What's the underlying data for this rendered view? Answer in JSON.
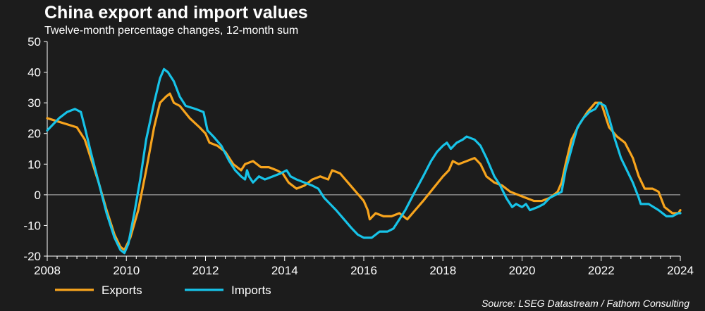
{
  "chart_data": {
    "type": "line",
    "title": "China export and import values",
    "subtitle": "Twelve-month percentage changes, 12-month sum",
    "source": "Source: LSEG Datastream / Fathom Consulting",
    "xlabel": "",
    "ylabel": "",
    "xlim": [
      2008,
      2024
    ],
    "ylim": [
      -20,
      50
    ],
    "x_ticks": [
      2008,
      2010,
      2012,
      2014,
      2016,
      2018,
      2020,
      2022,
      2024
    ],
    "y_ticks": [
      -20,
      -10,
      0,
      10,
      20,
      30,
      40,
      50
    ],
    "legend": "bottom-left",
    "colors": {
      "Exports": "#f7a41d",
      "Imports": "#17c3e8",
      "zero_line": "#bbbbbb",
      "background": "#1c1c1c"
    },
    "series": [
      {
        "name": "Exports",
        "points": [
          [
            2008.0,
            25
          ],
          [
            2008.25,
            24
          ],
          [
            2008.5,
            23
          ],
          [
            2008.75,
            22
          ],
          [
            2008.95,
            18
          ],
          [
            2009.1,
            12
          ],
          [
            2009.3,
            4
          ],
          [
            2009.5,
            -5
          ],
          [
            2009.7,
            -13
          ],
          [
            2009.85,
            -17
          ],
          [
            2009.95,
            -18
          ],
          [
            2010.1,
            -14
          ],
          [
            2010.3,
            -5
          ],
          [
            2010.5,
            8
          ],
          [
            2010.7,
            22
          ],
          [
            2010.85,
            30
          ],
          [
            2011.0,
            32
          ],
          [
            2011.1,
            33
          ],
          [
            2011.2,
            30
          ],
          [
            2011.35,
            29
          ],
          [
            2011.6,
            25
          ],
          [
            2011.85,
            22
          ],
          [
            2012.0,
            20
          ],
          [
            2012.1,
            17
          ],
          [
            2012.3,
            16
          ],
          [
            2012.5,
            14
          ],
          [
            2012.7,
            10
          ],
          [
            2012.9,
            8
          ],
          [
            2013.0,
            10
          ],
          [
            2013.2,
            11
          ],
          [
            2013.4,
            9
          ],
          [
            2013.6,
            9
          ],
          [
            2013.8,
            8
          ],
          [
            2013.95,
            7
          ],
          [
            2014.1,
            4
          ],
          [
            2014.3,
            2
          ],
          [
            2014.5,
            3
          ],
          [
            2014.7,
            5
          ],
          [
            2014.9,
            6
          ],
          [
            2015.1,
            5
          ],
          [
            2015.2,
            8
          ],
          [
            2015.4,
            7
          ],
          [
            2015.6,
            4
          ],
          [
            2015.8,
            1
          ],
          [
            2016.0,
            -2
          ],
          [
            2016.1,
            -5
          ],
          [
            2016.15,
            -8
          ],
          [
            2016.3,
            -6
          ],
          [
            2016.5,
            -7
          ],
          [
            2016.7,
            -7
          ],
          [
            2016.9,
            -6
          ],
          [
            2017.0,
            -7
          ],
          [
            2017.1,
            -8
          ],
          [
            2017.3,
            -5
          ],
          [
            2017.5,
            -2
          ],
          [
            2017.75,
            2
          ],
          [
            2018.0,
            6
          ],
          [
            2018.15,
            8
          ],
          [
            2018.25,
            11
          ],
          [
            2018.4,
            10
          ],
          [
            2018.6,
            11
          ],
          [
            2018.8,
            12
          ],
          [
            2018.95,
            10
          ],
          [
            2019.1,
            6
          ],
          [
            2019.3,
            4
          ],
          [
            2019.5,
            3
          ],
          [
            2019.7,
            1
          ],
          [
            2019.9,
            0
          ],
          [
            2020.1,
            -1
          ],
          [
            2020.3,
            -2
          ],
          [
            2020.5,
            -2
          ],
          [
            2020.7,
            -1
          ],
          [
            2020.9,
            1
          ],
          [
            2021.0,
            4
          ],
          [
            2021.1,
            10
          ],
          [
            2021.25,
            18
          ],
          [
            2021.45,
            23
          ],
          [
            2021.65,
            27
          ],
          [
            2021.85,
            30
          ],
          [
            2022.0,
            30
          ],
          [
            2022.2,
            22
          ],
          [
            2022.4,
            19
          ],
          [
            2022.6,
            17
          ],
          [
            2022.8,
            12
          ],
          [
            2022.95,
            6
          ],
          [
            2023.1,
            2
          ],
          [
            2023.3,
            2
          ],
          [
            2023.45,
            1
          ],
          [
            2023.6,
            -4
          ],
          [
            2023.8,
            -6
          ],
          [
            2023.95,
            -6
          ],
          [
            2024.0,
            -5
          ]
        ]
      },
      {
        "name": "Imports",
        "points": [
          [
            2008.0,
            21
          ],
          [
            2008.15,
            23
          ],
          [
            2008.3,
            25
          ],
          [
            2008.5,
            27
          ],
          [
            2008.7,
            28
          ],
          [
            2008.85,
            27
          ],
          [
            2008.95,
            22
          ],
          [
            2009.1,
            14
          ],
          [
            2009.3,
            4
          ],
          [
            2009.5,
            -6
          ],
          [
            2009.7,
            -14
          ],
          [
            2009.85,
            -18
          ],
          [
            2009.95,
            -19
          ],
          [
            2010.05,
            -16
          ],
          [
            2010.2,
            -6
          ],
          [
            2010.35,
            5
          ],
          [
            2010.5,
            18
          ],
          [
            2010.7,
            30
          ],
          [
            2010.85,
            38
          ],
          [
            2010.95,
            41
          ],
          [
            2011.05,
            40
          ],
          [
            2011.2,
            37
          ],
          [
            2011.35,
            32
          ],
          [
            2011.5,
            29
          ],
          [
            2011.75,
            28
          ],
          [
            2011.95,
            27
          ],
          [
            2012.05,
            21
          ],
          [
            2012.2,
            19
          ],
          [
            2012.4,
            16
          ],
          [
            2012.6,
            11
          ],
          [
            2012.75,
            8
          ],
          [
            2012.9,
            6
          ],
          [
            2013.0,
            5
          ],
          [
            2013.05,
            8
          ],
          [
            2013.1,
            6
          ],
          [
            2013.2,
            4
          ],
          [
            2013.35,
            6
          ],
          [
            2013.5,
            5
          ],
          [
            2013.7,
            6
          ],
          [
            2013.9,
            7
          ],
          [
            2014.05,
            8
          ],
          [
            2014.15,
            6
          ],
          [
            2014.3,
            5
          ],
          [
            2014.5,
            4
          ],
          [
            2014.7,
            3
          ],
          [
            2014.85,
            2
          ],
          [
            2015.0,
            -1
          ],
          [
            2015.15,
            -3
          ],
          [
            2015.3,
            -5
          ],
          [
            2015.5,
            -8
          ],
          [
            2015.7,
            -11
          ],
          [
            2015.85,
            -13
          ],
          [
            2016.0,
            -14
          ],
          [
            2016.2,
            -14
          ],
          [
            2016.4,
            -12
          ],
          [
            2016.6,
            -12
          ],
          [
            2016.75,
            -11
          ],
          [
            2016.9,
            -8
          ],
          [
            2017.05,
            -5
          ],
          [
            2017.25,
            0
          ],
          [
            2017.5,
            6
          ],
          [
            2017.7,
            11
          ],
          [
            2017.85,
            14
          ],
          [
            2018.0,
            16
          ],
          [
            2018.1,
            17
          ],
          [
            2018.2,
            15
          ],
          [
            2018.35,
            17
          ],
          [
            2018.5,
            18
          ],
          [
            2018.6,
            19
          ],
          [
            2018.8,
            18
          ],
          [
            2018.95,
            16
          ],
          [
            2019.1,
            12
          ],
          [
            2019.3,
            6
          ],
          [
            2019.45,
            3
          ],
          [
            2019.6,
            -1
          ],
          [
            2019.75,
            -4
          ],
          [
            2019.85,
            -3
          ],
          [
            2020.0,
            -4
          ],
          [
            2020.1,
            -3
          ],
          [
            2020.2,
            -5
          ],
          [
            2020.4,
            -4
          ],
          [
            2020.55,
            -3
          ],
          [
            2020.7,
            -1
          ],
          [
            2020.85,
            0
          ],
          [
            2021.0,
            1
          ],
          [
            2021.1,
            8
          ],
          [
            2021.25,
            15
          ],
          [
            2021.4,
            22
          ],
          [
            2021.55,
            25
          ],
          [
            2021.7,
            27
          ],
          [
            2021.85,
            28
          ],
          [
            2021.95,
            30
          ],
          [
            2022.1,
            29
          ],
          [
            2022.2,
            25
          ],
          [
            2022.35,
            18
          ],
          [
            2022.5,
            12
          ],
          [
            2022.65,
            8
          ],
          [
            2022.8,
            4
          ],
          [
            2022.95,
            -1
          ],
          [
            2023.0,
            -3
          ],
          [
            2023.2,
            -3
          ],
          [
            2023.45,
            -5
          ],
          [
            2023.65,
            -7
          ],
          [
            2023.8,
            -7
          ],
          [
            2023.95,
            -6
          ],
          [
            2024.0,
            -6
          ]
        ]
      }
    ]
  }
}
